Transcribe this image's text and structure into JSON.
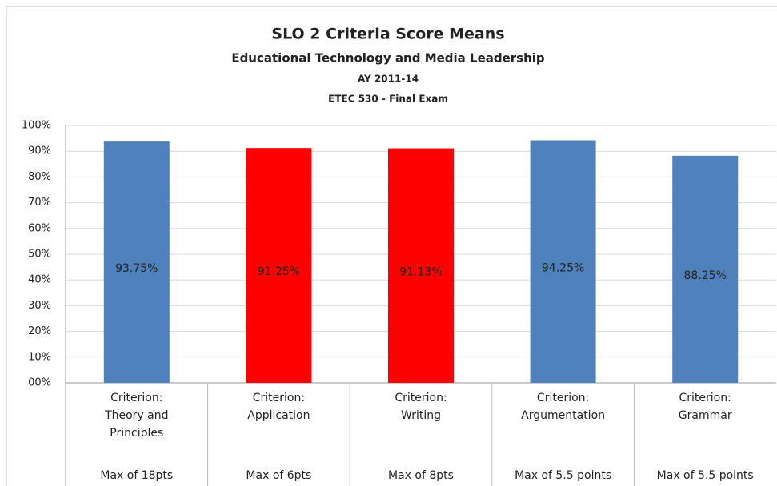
{
  "chart_data": {
    "type": "bar",
    "title": "SLO 2 Criteria Score Means",
    "subtitle": [
      "Educational Technology and Media Leadership",
      "AY 2011-14",
      "ETEC 530 - Final Exam"
    ],
    "categories": [
      "Criterion: Theory and Principles",
      "Criterion: Application",
      "Criterion: Writing",
      "Criterion: Argumentation",
      "Criterion: Grammar"
    ],
    "category_notes": [
      "Max of 18pts",
      "Max of 6pts",
      "Max of 8pts",
      "Max of 5.5 points",
      "Max of 5.5 points"
    ],
    "values": [
      93.75,
      91.25,
      91.13,
      94.25,
      88.25
    ],
    "value_labels": [
      "93.75%",
      "91.25%",
      "91.13%",
      "94.25%",
      "88.25%"
    ],
    "colors": [
      "#4f81bd",
      "#ff0000",
      "#ff0000",
      "#4f81bd",
      "#4f81bd"
    ],
    "ylim": [
      0,
      100
    ],
    "yticks": [
      {
        "value": 0,
        "label": "00%"
      },
      {
        "value": 10,
        "label": "10%"
      },
      {
        "value": 20,
        "label": "20%"
      },
      {
        "value": 30,
        "label": "30%"
      },
      {
        "value": 40,
        "label": "40%"
      },
      {
        "value": 50,
        "label": "50%"
      },
      {
        "value": 60,
        "label": "60%"
      },
      {
        "value": 70,
        "label": "70%"
      },
      {
        "value": 80,
        "label": "80%"
      },
      {
        "value": 90,
        "label": "90%"
      },
      {
        "value": 100,
        "label": "100%"
      }
    ],
    "grid": true
  }
}
